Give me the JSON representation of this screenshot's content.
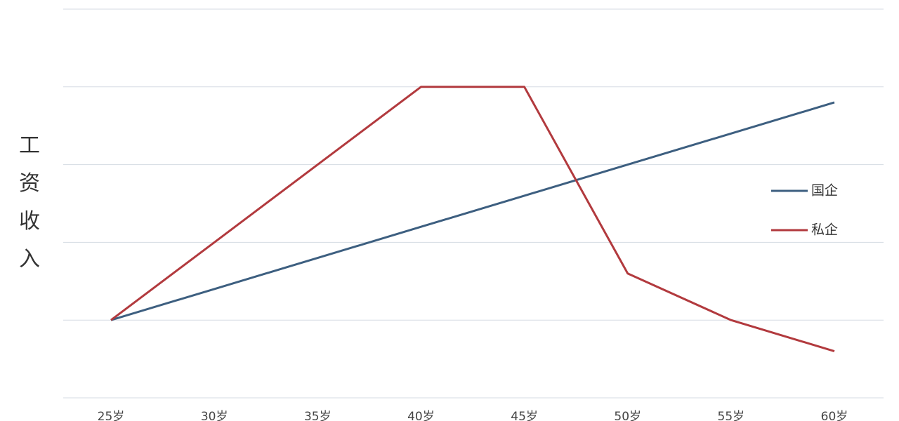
{
  "chart_data": {
    "type": "line",
    "y_label": "工资收入",
    "categories": [
      "25岁",
      "30岁",
      "35岁",
      "40岁",
      "45岁",
      "50岁",
      "55岁",
      "60岁"
    ],
    "series": [
      {
        "name": "国企",
        "color": "#3d5f80",
        "values": [
          1,
          1.4,
          1.8,
          2.2,
          2.6,
          3.0,
          3.4,
          3.8
        ]
      },
      {
        "name": "私企",
        "color": "#b23a3e",
        "values": [
          1,
          2,
          3,
          4,
          4,
          1.6,
          1,
          0.6
        ]
      }
    ],
    "ylim": [
      0,
      5
    ],
    "yticks": [
      0,
      1,
      2,
      3,
      4,
      5
    ],
    "grid": true
  }
}
